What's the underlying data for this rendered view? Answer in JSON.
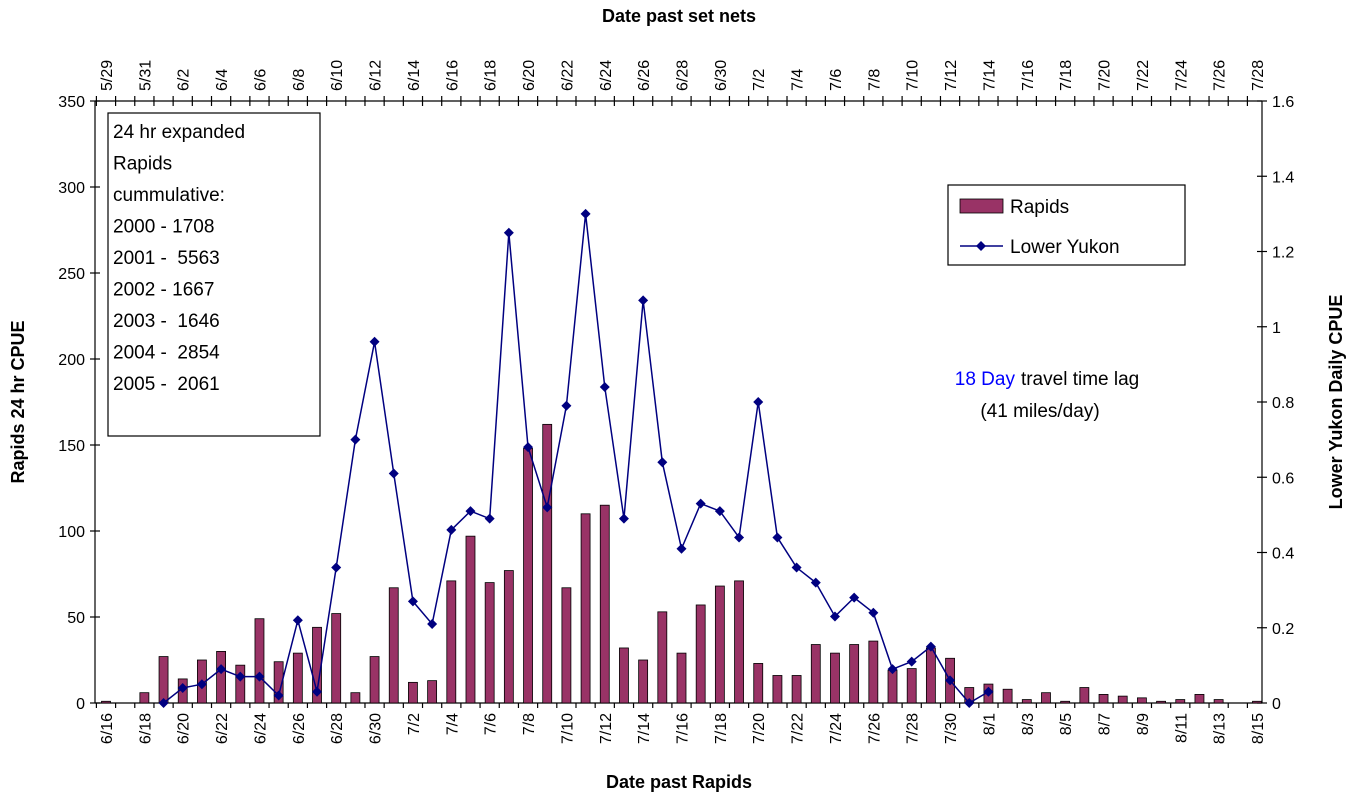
{
  "chart_data": {
    "type": "bar-line",
    "top_axis_title": "Date past set nets",
    "x_axis_title": "Date past Rapids",
    "y_axis_title": "Rapids 24 hr CPUE",
    "y2_axis_title": "Lower Yukon Daily CPUE",
    "categories": [
      "6/16",
      null,
      "6/18",
      null,
      "6/20",
      null,
      "6/22",
      null,
      "6/24",
      null,
      "6/26",
      null,
      "6/28",
      null,
      "6/30",
      null,
      "7/2",
      null,
      "7/4",
      null,
      "7/6",
      null,
      "7/8",
      null,
      "7/10",
      null,
      "7/12",
      null,
      "7/14",
      null,
      "7/16",
      null,
      "7/18",
      null,
      "7/20",
      null,
      "7/22",
      null,
      "7/24",
      null,
      "7/26",
      null,
      "7/28",
      null,
      "7/30",
      null,
      "8/1",
      null,
      "8/3",
      null,
      "8/5",
      null,
      "8/7",
      null,
      "8/9",
      null,
      "8/11",
      null,
      "8/13",
      null,
      "8/15"
    ],
    "top_categories": [
      "5/29",
      null,
      "5/31",
      null,
      "6/2",
      null,
      "6/4",
      null,
      "6/6",
      null,
      "6/8",
      null,
      "6/10",
      null,
      "6/12",
      null,
      "6/14",
      null,
      "6/16",
      null,
      "6/18",
      null,
      "6/20",
      null,
      "6/22",
      null,
      "6/24",
      null,
      "6/26",
      null,
      "6/28",
      null,
      "6/30",
      null,
      "7/2",
      null,
      "7/4",
      null,
      "7/6",
      null,
      "7/8",
      null,
      "7/10",
      null,
      "7/12",
      null,
      "7/14",
      null,
      "7/16",
      null,
      "7/18",
      null,
      "7/20",
      null,
      "7/22",
      null,
      "7/24",
      null,
      "7/26",
      null,
      "7/28"
    ],
    "series": [
      {
        "name": "Rapids",
        "type": "bar",
        "color": "#993366",
        "values": [
          1,
          0,
          6,
          27,
          14,
          25,
          30,
          22,
          49,
          24,
          29,
          44,
          52,
          6,
          27,
          67,
          12,
          13,
          71,
          97,
          70,
          77,
          148,
          162,
          67,
          110,
          115,
          32,
          25,
          53,
          29,
          57,
          68,
          71,
          23,
          16,
          16,
          34,
          29,
          34,
          36,
          19,
          20,
          32,
          26,
          9,
          11,
          8,
          2,
          6,
          1,
          9,
          5,
          4,
          3,
          1,
          2,
          5,
          2,
          0,
          1
        ]
      },
      {
        "name": "Lower Yukon",
        "type": "line",
        "axis": "y2",
        "color": "#000080",
        "values": [
          null,
          null,
          null,
          0,
          0.04,
          0.05,
          0.09,
          0.07,
          0.07,
          0.02,
          0.22,
          0.03,
          0.36,
          0.7,
          0.96,
          0.61,
          0.27,
          0.21,
          0.46,
          0.51,
          0.49,
          1.25,
          0.68,
          0.52,
          0.79,
          1.3,
          0.84,
          0.49,
          1.07,
          0.64,
          0.41,
          0.53,
          0.51,
          0.44,
          0.8,
          0.44,
          0.36,
          0.32,
          0.23,
          0.28,
          0.24,
          0.09,
          0.11,
          0.15,
          0.06,
          0,
          0.03,
          null,
          null,
          null,
          null,
          null,
          null,
          null,
          null,
          null,
          null,
          null,
          null,
          null,
          null
        ]
      }
    ],
    "ylim": [
      0,
      350
    ],
    "yticks": [
      0,
      50,
      100,
      150,
      200,
      250,
      300,
      350
    ],
    "y2lim": [
      0,
      1.6
    ],
    "y2ticks": [
      0,
      0.2,
      0.4,
      0.6,
      0.8,
      1,
      1.2,
      1.4,
      1.6
    ],
    "text_box": [
      "24 hr expanded",
      "Rapids",
      "cummulative:",
      "2000 - 1708",
      "2001 -  5563",
      "2002 - 1667",
      "2003 -  1646",
      "2004 -  2854",
      "2005 -  2061"
    ],
    "annotation": {
      "highlight": "18 Day",
      "text": "travel time lag",
      "line2": "(41 miles/day)",
      "highlight_color": "#0000ff"
    }
  }
}
